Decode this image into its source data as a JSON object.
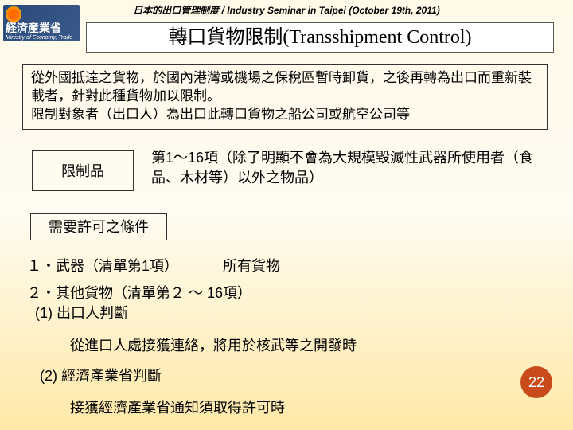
{
  "header": "日本的出口管理制度  / Industry Seminar in Taipei (October 19th, 2011)",
  "logo": {
    "cn": "経済産業省",
    "en": "Ministry of Economy, Trade and Industry"
  },
  "title": "轉口貨物限制(Transshipment Control)",
  "description": "從外國抵達之貨物，於國內港灣或機場之保稅區暫時卸貨，之後再轉為出口而重新裝載者，針對此種貨物加以限制。\n限制對象者（出口人）為出口此轉口貨物之船公司或航空公司等",
  "restricted_label": "限制品",
  "restricted_text": "第1～16項（除了明顯不會為大規模毀滅性武器所使用者（食品、木材等）以外之物品）",
  "conditions_label": "需要許可之條件",
  "item1": "１・武器（清單第1項）",
  "item1_note": "所有貨物",
  "item2": "２・其他貨物（清單第２ ～ 16項）",
  "item2_sub1": "(1) 出口人判斷",
  "item2_sub1_text": "從進口人處接獲連絡，將用於核武等之開發時",
  "item2_sub2": "(2) 經濟產業省判斷",
  "item2_sub2_text": "接獲經濟產業省通知須取得許可時",
  "page_number": "22",
  "colors": {
    "bg_top": "#fff9e8",
    "bg_bottom": "#ffe9a8",
    "page_circle": "#c94a1a",
    "logo_bg": "#2a4a7a",
    "border": "#333333"
  }
}
